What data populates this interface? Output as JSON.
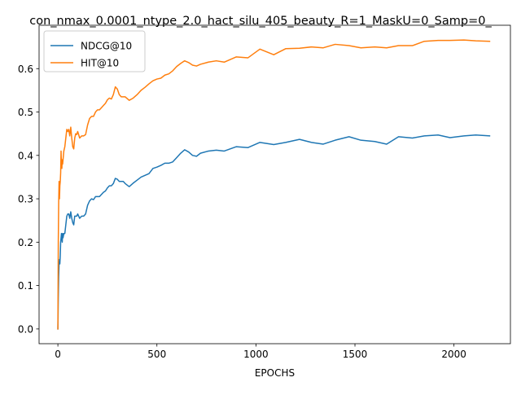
{
  "chart_data": {
    "type": "line",
    "title": "con_nmax_0.0001_ntype_2.0_hact_silu_405_beauty_R=1_MaskU=0_Samp=0_",
    "xlabel": "EPOCHS",
    "ylabel": "",
    "xlim": [
      -95,
      2285
    ],
    "ylim": [
      -0.034,
      0.7
    ],
    "xticks": [
      0,
      500,
      1000,
      1500,
      2000
    ],
    "yticks": [
      0.0,
      0.1,
      0.2,
      0.3,
      0.4,
      0.5,
      0.6
    ],
    "xtick_labels": [
      "0",
      "500",
      "1000",
      "1500",
      "2000"
    ],
    "ytick_labels": [
      "0.0",
      "0.1",
      "0.2",
      "0.3",
      "0.4",
      "0.5",
      "0.6"
    ],
    "grid": false,
    "legend_position": "upper-left",
    "series": [
      {
        "name": "NDCG@10",
        "color": "#1f77b4",
        "x": [
          0,
          2,
          4,
          6,
          8,
          10,
          12,
          14,
          16,
          18,
          20,
          22,
          24,
          26,
          30,
          35,
          40,
          45,
          50,
          55,
          60,
          65,
          70,
          75,
          80,
          85,
          90,
          95,
          100,
          110,
          120,
          130,
          140,
          150,
          160,
          170,
          180,
          190,
          200,
          210,
          220,
          230,
          240,
          250,
          260,
          270,
          280,
          290,
          300,
          310,
          320,
          330,
          340,
          360,
          380,
          400,
          420,
          440,
          460,
          480,
          500,
          520,
          540,
          560,
          580,
          600,
          620,
          640,
          660,
          680,
          700,
          720,
          760,
          800,
          840,
          900,
          960,
          1020,
          1090,
          1150,
          1220,
          1280,
          1340,
          1400,
          1470,
          1530,
          1600,
          1660,
          1720,
          1790,
          1850,
          1920,
          1980,
          2050,
          2110,
          2180
        ],
        "values": [
          0.0,
          0.07,
          0.12,
          0.15,
          0.16,
          0.15,
          0.17,
          0.2,
          0.21,
          0.22,
          0.21,
          0.2,
          0.22,
          0.21,
          0.22,
          0.22,
          0.24,
          0.26,
          0.265,
          0.265,
          0.255,
          0.27,
          0.255,
          0.245,
          0.24,
          0.26,
          0.26,
          0.26,
          0.265,
          0.255,
          0.26,
          0.26,
          0.265,
          0.285,
          0.295,
          0.3,
          0.298,
          0.305,
          0.305,
          0.305,
          0.31,
          0.315,
          0.318,
          0.325,
          0.33,
          0.33,
          0.335,
          0.347,
          0.345,
          0.34,
          0.34,
          0.34,
          0.335,
          0.328,
          0.336,
          0.343,
          0.35,
          0.354,
          0.358,
          0.37,
          0.373,
          0.377,
          0.382,
          0.382,
          0.385,
          0.395,
          0.405,
          0.413,
          0.408,
          0.4,
          0.398,
          0.405,
          0.41,
          0.412,
          0.41,
          0.42,
          0.418,
          0.43,
          0.425,
          0.43,
          0.437,
          0.43,
          0.426,
          0.435,
          0.443,
          0.435,
          0.432,
          0.426,
          0.443,
          0.44,
          0.445,
          0.447,
          0.441,
          0.445,
          0.447,
          0.445
        ]
      },
      {
        "name": "HIT@10",
        "color": "#ff7f0e",
        "x": [
          0,
          2,
          4,
          6,
          8,
          10,
          12,
          14,
          16,
          18,
          20,
          22,
          24,
          26,
          30,
          35,
          40,
          45,
          50,
          55,
          60,
          65,
          70,
          75,
          80,
          85,
          90,
          95,
          100,
          110,
          120,
          130,
          140,
          150,
          160,
          170,
          180,
          190,
          200,
          210,
          220,
          230,
          240,
          250,
          260,
          270,
          280,
          290,
          300,
          310,
          320,
          330,
          340,
          360,
          380,
          400,
          420,
          440,
          460,
          480,
          500,
          520,
          540,
          560,
          580,
          600,
          620,
          640,
          660,
          680,
          700,
          720,
          760,
          800,
          840,
          900,
          960,
          1020,
          1090,
          1150,
          1220,
          1280,
          1340,
          1400,
          1470,
          1530,
          1600,
          1660,
          1720,
          1790,
          1850,
          1920,
          1980,
          2050,
          2110,
          2180
        ],
        "values": [
          0.0,
          0.2,
          0.29,
          0.34,
          0.3,
          0.33,
          0.34,
          0.36,
          0.41,
          0.38,
          0.37,
          0.39,
          0.38,
          0.39,
          0.41,
          0.42,
          0.44,
          0.46,
          0.455,
          0.46,
          0.445,
          0.465,
          0.44,
          0.42,
          0.415,
          0.44,
          0.45,
          0.448,
          0.455,
          0.44,
          0.445,
          0.445,
          0.448,
          0.47,
          0.485,
          0.49,
          0.49,
          0.5,
          0.505,
          0.505,
          0.51,
          0.515,
          0.52,
          0.528,
          0.532,
          0.53,
          0.54,
          0.558,
          0.553,
          0.54,
          0.535,
          0.535,
          0.535,
          0.527,
          0.532,
          0.54,
          0.55,
          0.557,
          0.565,
          0.572,
          0.576,
          0.578,
          0.585,
          0.588,
          0.595,
          0.605,
          0.612,
          0.618,
          0.614,
          0.608,
          0.606,
          0.61,
          0.615,
          0.618,
          0.615,
          0.627,
          0.625,
          0.645,
          0.632,
          0.646,
          0.647,
          0.65,
          0.648,
          0.656,
          0.653,
          0.648,
          0.65,
          0.648,
          0.653,
          0.653,
          0.663,
          0.665,
          0.665,
          0.666,
          0.664,
          0.663
        ]
      }
    ]
  }
}
